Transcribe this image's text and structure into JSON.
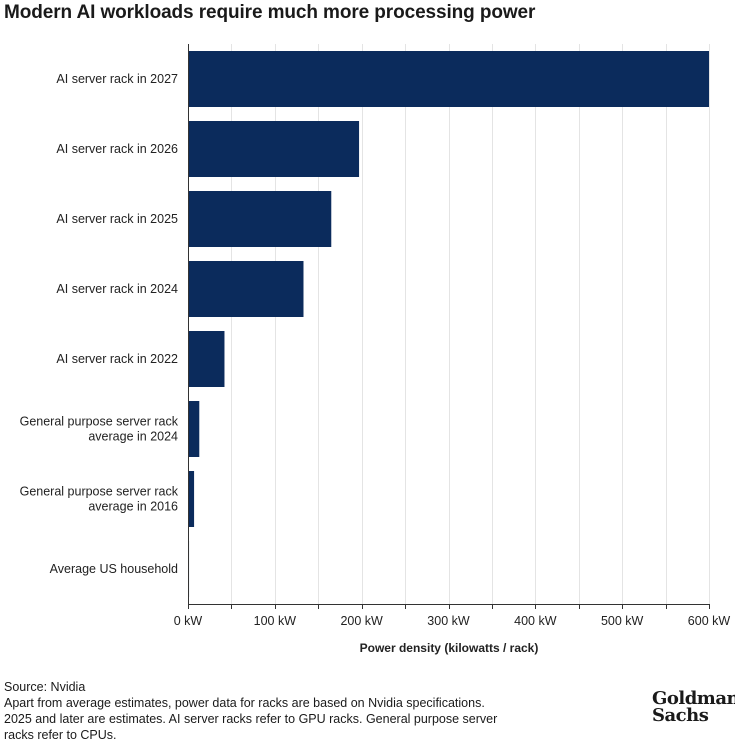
{
  "chart_data": {
    "type": "bar",
    "orientation": "horizontal",
    "title": "Modern AI workloads require much more processing power",
    "categories": [
      [
        "AI server rack in 2027"
      ],
      [
        "AI server rack in 2026"
      ],
      [
        "AI server rack in 2025"
      ],
      [
        "AI server rack in 2024"
      ],
      [
        "AI server rack in 2022"
      ],
      [
        "General purpose server rack",
        "average in 2024"
      ],
      [
        "General purpose server rack",
        "average in 2016"
      ],
      [
        "Average US household"
      ]
    ],
    "values": [
      600,
      197,
      165,
      133,
      42,
      13,
      7,
      1.2
    ],
    "xlabel": "Power density (kilowatts / rack)",
    "ylabel": "",
    "xlim": [
      0,
      600
    ],
    "xticks": [
      0,
      100,
      200,
      300,
      400,
      500,
      600
    ],
    "xtick_labels": [
      "0 kW",
      "100 kW",
      "200 kW",
      "300 kW",
      "400 kW",
      "500 kW",
      "600 kW"
    ],
    "grid": true,
    "bar_color": "#0b2b5c"
  },
  "footnotes": {
    "source": "Source: Nvidia",
    "notes": [
      "Apart from average estimates, power data for racks are based on Nvidia specifications.",
      "2025 and later are estimates. AI server racks refer to GPU racks. General purpose server",
      "racks refer to CPUs."
    ]
  },
  "logo": {
    "line1": "Goldman",
    "line2": "Sachs"
  }
}
